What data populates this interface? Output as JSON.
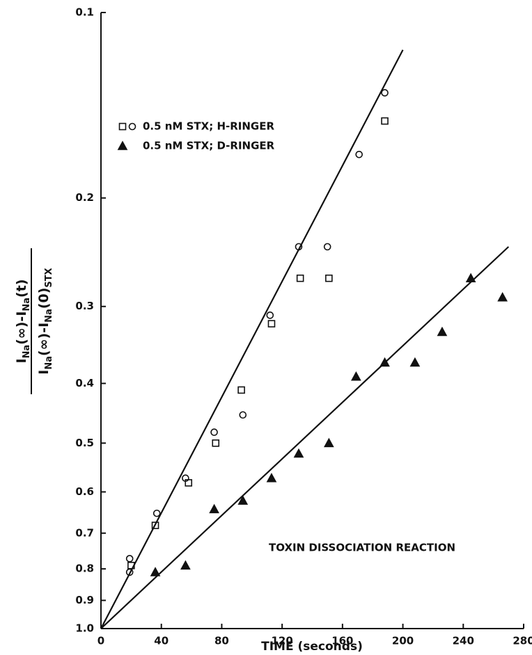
{
  "chart_data": {
    "type": "scatter",
    "log_y": true,
    "xlabel": "TIME (seconds)",
    "ylabel": {
      "numerator": [
        {
          "text": "I"
        },
        {
          "text": "Na",
          "sub": true
        },
        {
          "text": "(∞)-I"
        },
        {
          "text": "Na",
          "sub": true
        },
        {
          "text": "(t)"
        }
      ],
      "denominator": [
        {
          "text": "I"
        },
        {
          "text": "Na",
          "sub": true
        },
        {
          "text": "(∞)-I"
        },
        {
          "text": "Na",
          "sub": true
        },
        {
          "text": "(0)"
        },
        {
          "text": "STX",
          "sub": true
        }
      ]
    },
    "annotation": "TOXIN DISSOCIATION REACTION",
    "xlim": [
      0,
      280
    ],
    "xticks": [
      0,
      40,
      80,
      120,
      160,
      200,
      240,
      280
    ],
    "ylim": [
      1,
      0.1
    ],
    "yticks": [
      0.1,
      0.2,
      0.3,
      0.4,
      0.5,
      0.6,
      0.7,
      0.8,
      0.9,
      {
        "value": 1,
        "label": "1.0"
      }
    ],
    "color": "#111111",
    "series": [
      {
        "name": "0.5 nM STX; H-RINGER",
        "marker": "square",
        "x": [
          20,
          36,
          58,
          76,
          93,
          113,
          132,
          151,
          188
        ],
        "values": [
          0.79,
          0.68,
          0.58,
          0.5,
          0.41,
          0.32,
          0.27,
          0.27,
          0.15
        ]
      },
      {
        "marker": "circle",
        "x": [
          19,
          19,
          37,
          56,
          75,
          94,
          112,
          131,
          150,
          171,
          188
        ],
        "values": [
          0.77,
          0.81,
          0.65,
          0.57,
          0.48,
          0.45,
          0.31,
          0.24,
          0.24,
          0.17,
          0.135
        ]
      },
      {
        "name": "0.5 nM STX; D-RINGER",
        "marker": "triangle",
        "x": [
          36,
          56,
          75,
          94,
          113,
          131,
          151,
          169,
          188,
          208,
          226,
          245,
          266
        ],
        "values": [
          0.81,
          0.79,
          0.64,
          0.62,
          0.57,
          0.52,
          0.5,
          0.39,
          0.37,
          0.37,
          0.33,
          0.27,
          0.29
        ]
      }
    ],
    "fits": [
      {
        "x": [
          0,
          200
        ],
        "values": [
          1,
          0.115
        ]
      },
      {
        "x": [
          0,
          270
        ],
        "values": [
          1,
          0.24
        ]
      }
    ]
  }
}
